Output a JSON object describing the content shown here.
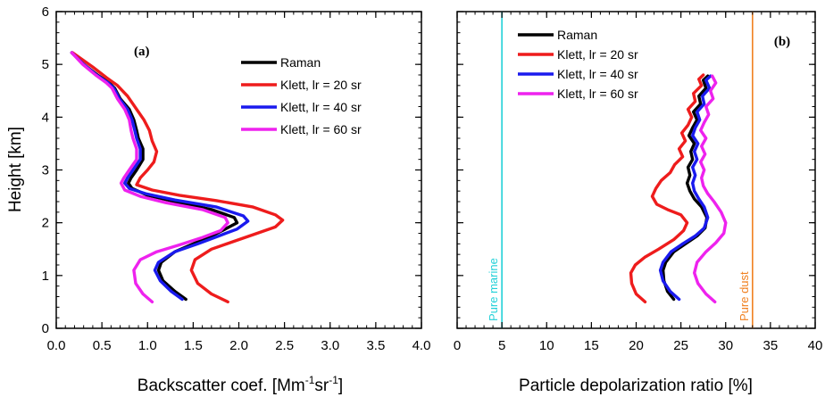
{
  "figure": {
    "ylabel": "Height [km]",
    "colors": {
      "Raman": "#000000",
      "Klett, lr = 20 sr": "#ee1c1c",
      "Klett, lr = 40 sr": "#1a1aee",
      "Klett, lr = 60 sr": "#ee22ee"
    }
  },
  "chart_data": [
    {
      "type": "line",
      "panel_label": "(a)",
      "xlabel_main": "Backscatter coef. [Mm",
      "xlabel_sup1": "-1",
      "xlabel_mid": "sr",
      "xlabel_sup2": "-1",
      "xlabel_end": "]",
      "ylabel": "Height [km]",
      "xlim": [
        0.0,
        4.0
      ],
      "ylim": [
        0,
        6
      ],
      "xticks": [
        "0.0",
        "0.5",
        "1.0",
        "1.5",
        "2.0",
        "2.5",
        "3.0",
        "3.5",
        "4.0"
      ],
      "yticks": [
        "0",
        "1",
        "2",
        "3",
        "4",
        "5",
        "6"
      ],
      "legend_position": "upper-right",
      "series": [
        {
          "name": "Raman",
          "color": "#000000",
          "points": [
            [
              1.42,
              0.55
            ],
            [
              1.3,
              0.7
            ],
            [
              1.17,
              0.9
            ],
            [
              1.12,
              1.1
            ],
            [
              1.15,
              1.25
            ],
            [
              1.3,
              1.45
            ],
            [
              1.5,
              1.6
            ],
            [
              1.7,
              1.75
            ],
            [
              1.85,
              1.88
            ],
            [
              1.98,
              2.0
            ],
            [
              1.95,
              2.1
            ],
            [
              1.7,
              2.25
            ],
            [
              1.3,
              2.4
            ],
            [
              1.0,
              2.52
            ],
            [
              0.83,
              2.65
            ],
            [
              0.79,
              2.75
            ],
            [
              0.82,
              2.85
            ],
            [
              0.88,
              3.0
            ],
            [
              0.95,
              3.2
            ],
            [
              0.95,
              3.4
            ],
            [
              0.9,
              3.6
            ],
            [
              0.88,
              3.75
            ],
            [
              0.85,
              3.95
            ],
            [
              0.8,
              4.15
            ],
            [
              0.7,
              4.35
            ],
            [
              0.64,
              4.55
            ],
            [
              0.58,
              4.65
            ],
            [
              0.45,
              4.8
            ],
            [
              0.3,
              5.0
            ],
            [
              0.17,
              5.22
            ]
          ]
        },
        {
          "name": "Klett, lr = 20 sr",
          "color": "#ee1c1c",
          "points": [
            [
              1.88,
              0.5
            ],
            [
              1.7,
              0.65
            ],
            [
              1.55,
              0.85
            ],
            [
              1.48,
              1.1
            ],
            [
              1.52,
              1.3
            ],
            [
              1.7,
              1.5
            ],
            [
              1.95,
              1.65
            ],
            [
              2.2,
              1.8
            ],
            [
              2.4,
              1.92
            ],
            [
              2.48,
              2.05
            ],
            [
              2.4,
              2.15
            ],
            [
              2.15,
              2.3
            ],
            [
              1.75,
              2.42
            ],
            [
              1.35,
              2.52
            ],
            [
              1.05,
              2.62
            ],
            [
              0.88,
              2.72
            ],
            [
              0.92,
              2.85
            ],
            [
              1.0,
              3.0
            ],
            [
              1.07,
              3.15
            ],
            [
              1.1,
              3.35
            ],
            [
              1.05,
              3.55
            ],
            [
              1.02,
              3.75
            ],
            [
              0.96,
              3.95
            ],
            [
              0.88,
              4.15
            ],
            [
              0.78,
              4.4
            ],
            [
              0.67,
              4.6
            ],
            [
              0.55,
              4.75
            ],
            [
              0.4,
              4.95
            ],
            [
              0.18,
              5.22
            ]
          ]
        },
        {
          "name": "Klett, lr = 40 sr",
          "color": "#1a1aee",
          "points": [
            [
              1.38,
              0.55
            ],
            [
              1.26,
              0.7
            ],
            [
              1.14,
              0.9
            ],
            [
              1.08,
              1.1
            ],
            [
              1.12,
              1.25
            ],
            [
              1.3,
              1.45
            ],
            [
              1.55,
              1.6
            ],
            [
              1.78,
              1.75
            ],
            [
              1.98,
              1.88
            ],
            [
              2.1,
              2.03
            ],
            [
              2.05,
              2.13
            ],
            [
              1.75,
              2.3
            ],
            [
              1.3,
              2.43
            ],
            [
              0.98,
              2.55
            ],
            [
              0.8,
              2.65
            ],
            [
              0.75,
              2.75
            ],
            [
              0.78,
              2.85
            ],
            [
              0.84,
              3.0
            ],
            [
              0.92,
              3.2
            ],
            [
              0.92,
              3.4
            ],
            [
              0.88,
              3.6
            ],
            [
              0.86,
              3.75
            ],
            [
              0.83,
              3.95
            ],
            [
              0.78,
              4.15
            ],
            [
              0.69,
              4.35
            ],
            [
              0.63,
              4.55
            ],
            [
              0.57,
              4.65
            ],
            [
              0.44,
              4.8
            ],
            [
              0.3,
              5.0
            ],
            [
              0.17,
              5.22
            ]
          ]
        },
        {
          "name": "Klett, lr = 60 sr",
          "color": "#ee22ee",
          "points": [
            [
              1.05,
              0.5
            ],
            [
              0.95,
              0.65
            ],
            [
              0.87,
              0.85
            ],
            [
              0.85,
              1.1
            ],
            [
              0.92,
              1.3
            ],
            [
              1.1,
              1.45
            ],
            [
              1.35,
              1.58
            ],
            [
              1.6,
              1.72
            ],
            [
              1.8,
              1.85
            ],
            [
              1.88,
              2.0
            ],
            [
              1.85,
              2.1
            ],
            [
              1.6,
              2.25
            ],
            [
              1.2,
              2.38
            ],
            [
              0.92,
              2.5
            ],
            [
              0.75,
              2.62
            ],
            [
              0.71,
              2.75
            ],
            [
              0.74,
              2.85
            ],
            [
              0.8,
              3.0
            ],
            [
              0.88,
              3.2
            ],
            [
              0.88,
              3.4
            ],
            [
              0.84,
              3.6
            ],
            [
              0.82,
              3.75
            ],
            [
              0.8,
              3.95
            ],
            [
              0.75,
              4.15
            ],
            [
              0.67,
              4.35
            ],
            [
              0.61,
              4.55
            ],
            [
              0.55,
              4.65
            ],
            [
              0.43,
              4.8
            ],
            [
              0.29,
              5.0
            ],
            [
              0.17,
              5.22
            ]
          ]
        }
      ]
    },
    {
      "type": "line",
      "panel_label": "(b)",
      "xlabel": "Particle depolarization ratio [%]",
      "xlim": [
        0,
        40
      ],
      "ylim": [
        0,
        6
      ],
      "xticks": [
        "0",
        "5",
        "10",
        "15",
        "20",
        "25",
        "30",
        "35",
        "40"
      ],
      "yticks": [
        "0",
        "1",
        "2",
        "3",
        "4",
        "5",
        "6"
      ],
      "legend_position": "upper-left",
      "reference_lines": [
        {
          "label": "Pure marine",
          "x": 5,
          "color": "#22d0d8"
        },
        {
          "label": "Pure dust",
          "x": 33,
          "color": "#f08020"
        }
      ],
      "series": [
        {
          "name": "Raman",
          "color": "#000000",
          "points": [
            [
              24.2,
              0.55
            ],
            [
              23.5,
              0.7
            ],
            [
              23.1,
              0.9
            ],
            [
              23.0,
              1.1
            ],
            [
              23.3,
              1.25
            ],
            [
              24.2,
              1.45
            ],
            [
              25.5,
              1.6
            ],
            [
              26.8,
              1.75
            ],
            [
              27.7,
              1.9
            ],
            [
              27.9,
              2.1
            ],
            [
              27.3,
              2.3
            ],
            [
              26.5,
              2.45
            ],
            [
              26.0,
              2.6
            ],
            [
              25.7,
              2.75
            ],
            [
              26.0,
              2.9
            ],
            [
              25.8,
              3.05
            ],
            [
              26.3,
              3.2
            ],
            [
              26.1,
              3.35
            ],
            [
              26.5,
              3.5
            ],
            [
              25.9,
              3.65
            ],
            [
              26.3,
              3.8
            ],
            [
              26.8,
              3.95
            ],
            [
              26.4,
              4.1
            ],
            [
              27.2,
              4.25
            ],
            [
              27.0,
              4.4
            ],
            [
              27.8,
              4.55
            ],
            [
              27.5,
              4.7
            ],
            [
              28.0,
              4.78
            ]
          ]
        },
        {
          "name": "Klett, lr = 20 sr",
          "color": "#ee1c1c",
          "points": [
            [
              21.0,
              0.5
            ],
            [
              20.0,
              0.65
            ],
            [
              19.5,
              0.85
            ],
            [
              19.4,
              1.05
            ],
            [
              19.9,
              1.2
            ],
            [
              21.0,
              1.35
            ],
            [
              22.5,
              1.5
            ],
            [
              24.2,
              1.68
            ],
            [
              25.3,
              1.85
            ],
            [
              25.7,
              2.0
            ],
            [
              25.0,
              2.15
            ],
            [
              23.5,
              2.25
            ],
            [
              22.3,
              2.35
            ],
            [
              21.8,
              2.5
            ],
            [
              22.2,
              2.65
            ],
            [
              22.8,
              2.8
            ],
            [
              23.8,
              2.95
            ],
            [
              24.3,
              3.1
            ],
            [
              25.2,
              3.25
            ],
            [
              24.8,
              3.4
            ],
            [
              25.5,
              3.55
            ],
            [
              25.1,
              3.7
            ],
            [
              25.8,
              3.85
            ],
            [
              26.2,
              4.0
            ],
            [
              25.8,
              4.15
            ],
            [
              26.6,
              4.3
            ],
            [
              26.4,
              4.45
            ],
            [
              27.3,
              4.6
            ],
            [
              27.0,
              4.72
            ],
            [
              27.5,
              4.8
            ]
          ]
        },
        {
          "name": "Klett, lr = 40 sr",
          "color": "#1a1aee",
          "points": [
            [
              24.8,
              0.55
            ],
            [
              23.8,
              0.7
            ],
            [
              23.0,
              0.9
            ],
            [
              22.7,
              1.1
            ],
            [
              23.0,
              1.25
            ],
            [
              23.9,
              1.45
            ],
            [
              25.2,
              1.6
            ],
            [
              26.6,
              1.75
            ],
            [
              27.6,
              1.9
            ],
            [
              28.0,
              2.1
            ],
            [
              27.6,
              2.3
            ],
            [
              27.0,
              2.45
            ],
            [
              26.5,
              2.6
            ],
            [
              26.3,
              2.75
            ],
            [
              26.6,
              2.9
            ],
            [
              26.3,
              3.05
            ],
            [
              26.8,
              3.2
            ],
            [
              26.5,
              3.35
            ],
            [
              26.9,
              3.5
            ],
            [
              26.3,
              3.65
            ],
            [
              26.6,
              3.8
            ],
            [
              27.1,
              3.95
            ],
            [
              26.8,
              4.1
            ],
            [
              27.6,
              4.25
            ],
            [
              27.4,
              4.4
            ],
            [
              28.2,
              4.55
            ],
            [
              27.8,
              4.7
            ],
            [
              28.3,
              4.78
            ]
          ]
        },
        {
          "name": "Klett, lr = 60 sr",
          "color": "#ee22ee",
          "points": [
            [
              28.8,
              0.5
            ],
            [
              27.8,
              0.65
            ],
            [
              26.9,
              0.85
            ],
            [
              26.5,
              1.05
            ],
            [
              26.8,
              1.25
            ],
            [
              27.8,
              1.45
            ],
            [
              28.9,
              1.62
            ],
            [
              29.8,
              1.8
            ],
            [
              30.0,
              2.0
            ],
            [
              29.5,
              2.2
            ],
            [
              28.7,
              2.4
            ],
            [
              28.0,
              2.55
            ],
            [
              27.5,
              2.7
            ],
            [
              27.3,
              2.85
            ],
            [
              27.6,
              3.0
            ],
            [
              27.2,
              3.15
            ],
            [
              27.7,
              3.3
            ],
            [
              27.3,
              3.45
            ],
            [
              27.8,
              3.6
            ],
            [
              27.2,
              3.75
            ],
            [
              27.6,
              3.9
            ],
            [
              28.1,
              4.05
            ],
            [
              27.8,
              4.2
            ],
            [
              28.6,
              4.35
            ],
            [
              28.3,
              4.5
            ],
            [
              28.9,
              4.65
            ],
            [
              28.5,
              4.78
            ]
          ]
        }
      ]
    }
  ]
}
